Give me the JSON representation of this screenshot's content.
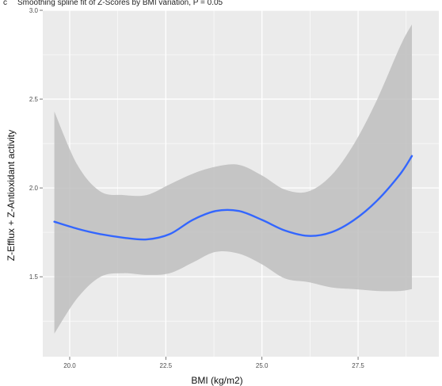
{
  "chart_data": {
    "type": "line",
    "panel_tag": "c",
    "title": "Smoothing spline fit of Z-Scores by BMI variation, P = 0.05",
    "xlabel": "BMI (kg/m2)",
    "ylabel": "Z-Efflux + Z-Antioxidant activity",
    "xlim": [
      19.3,
      29.6
    ],
    "ylim": [
      1.05,
      3.0
    ],
    "x_ticks": [
      20.0,
      22.5,
      25.0,
      27.5
    ],
    "x_tick_labels": [
      "20.0",
      "22.5",
      "25.0",
      "27.5"
    ],
    "y_ticks": [
      1.5,
      2.0,
      2.5,
      3.0
    ],
    "y_tick_labels": [
      "1.5",
      "2.0",
      "2.5",
      "3.0"
    ],
    "grid": true,
    "series": [
      {
        "x": [
          19.6,
          20.2,
          20.8,
          21.4,
          22.0,
          22.6,
          23.2,
          23.8,
          24.4,
          25.0,
          25.6,
          26.2,
          26.8,
          27.4,
          28.0,
          28.6,
          28.9
        ],
        "values": [
          1.81,
          1.77,
          1.74,
          1.72,
          1.71,
          1.74,
          1.82,
          1.87,
          1.87,
          1.82,
          1.76,
          1.73,
          1.75,
          1.82,
          1.93,
          2.08,
          2.18
        ]
      }
    ],
    "band": {
      "x": [
        19.6,
        20.2,
        20.8,
        21.4,
        22.0,
        22.6,
        23.2,
        23.8,
        24.4,
        25.0,
        25.6,
        26.2,
        26.8,
        27.4,
        28.0,
        28.6,
        28.9
      ],
      "upper": [
        2.43,
        2.13,
        1.98,
        1.96,
        1.96,
        2.02,
        2.08,
        2.12,
        2.13,
        2.07,
        1.99,
        1.98,
        2.07,
        2.25,
        2.5,
        2.8,
        2.92
      ],
      "lower": [
        1.18,
        1.38,
        1.5,
        1.52,
        1.51,
        1.52,
        1.58,
        1.64,
        1.63,
        1.57,
        1.49,
        1.47,
        1.44,
        1.43,
        1.42,
        1.42,
        1.43
      ]
    },
    "colors": {
      "panel_bg": "#ebebeb",
      "grid": "#ffffff",
      "band": "#bebebe",
      "line": "#3366ff"
    }
  }
}
